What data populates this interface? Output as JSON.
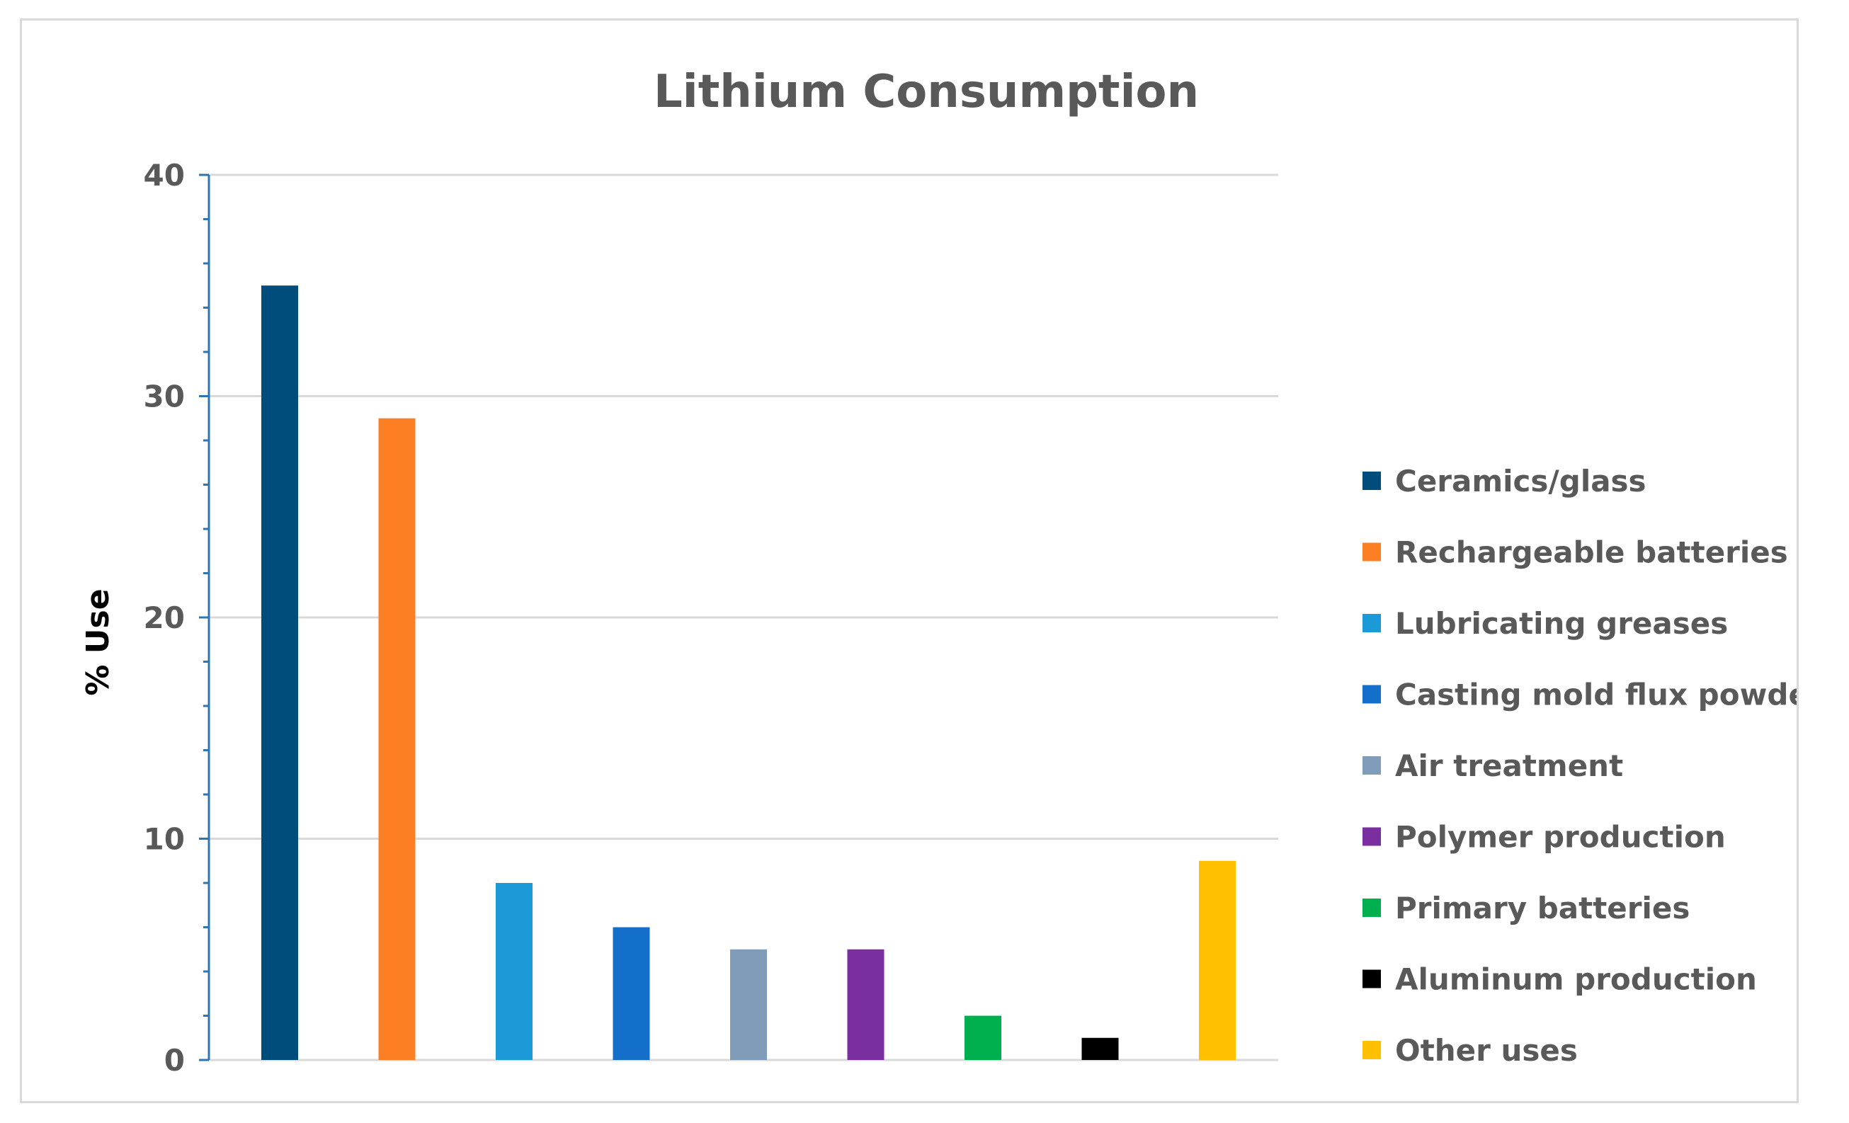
{
  "chart_data": {
    "type": "bar",
    "title": "Lithium Consumption",
    "xlabel": "",
    "ylabel": "% Use",
    "ylim": [
      0,
      40
    ],
    "yticks": [
      0,
      10,
      20,
      30,
      40
    ],
    "grid": true,
    "legend_position": "right",
    "categories": [
      "Ceramics/glass",
      "Rechargeable batteries",
      "Lubricating greases",
      "Casting mold flux powders",
      "Air treatment",
      "Polymer production",
      "Primary batteries",
      "Aluminum production",
      "Other uses"
    ],
    "values": [
      35,
      29,
      8,
      6,
      5,
      5,
      2,
      1,
      9
    ],
    "colors": [
      "#004c7a",
      "#fd7f23",
      "#1b9ad7",
      "#146fcb",
      "#7f9db9",
      "#7a2fa1",
      "#00b04f",
      "#000000",
      "#fec000"
    ]
  }
}
